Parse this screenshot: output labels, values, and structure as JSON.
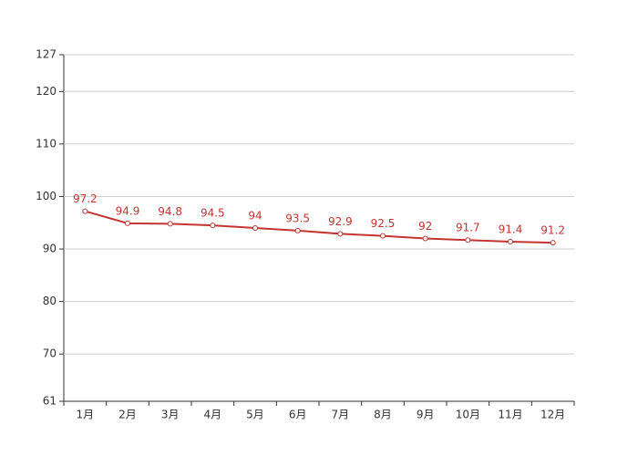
{
  "chart_data": {
    "type": "line",
    "categories": [
      "1月",
      "2月",
      "3月",
      "4月",
      "5月",
      "6月",
      "7月",
      "8月",
      "9月",
      "10月",
      "11月",
      "12月"
    ],
    "values": [
      97.2,
      94.9,
      94.8,
      94.5,
      94,
      93.5,
      92.9,
      92.5,
      92,
      91.7,
      91.4,
      91.2
    ],
    "color": "#c23531",
    "ylim": [
      61,
      127
    ],
    "yticks": [
      61,
      70,
      80,
      90,
      100,
      110,
      120,
      127
    ],
    "grid": true
  }
}
